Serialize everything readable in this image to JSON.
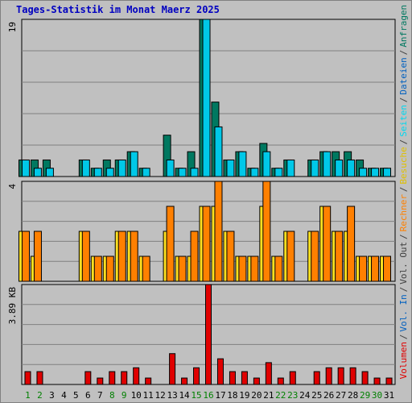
{
  "chart_data": {
    "type": "bar",
    "title": "Tages-Statistik im Monat Maerz 2025",
    "categories": [
      "1",
      "2",
      "3",
      "4",
      "5",
      "6",
      "7",
      "8",
      "9",
      "10",
      "11",
      "12",
      "13",
      "14",
      "15",
      "16",
      "17",
      "18",
      "19",
      "20",
      "21",
      "22",
      "23",
      "24",
      "25",
      "26",
      "27",
      "28",
      "29",
      "30",
      "31"
    ],
    "weekend_days": [
      "1",
      "2",
      "8",
      "9",
      "15",
      "16",
      "22",
      "23",
      "29",
      "30"
    ],
    "panels": [
      {
        "name": "hits",
        "max_label": "19",
        "ylim": [
          0,
          19
        ],
        "series": [
          {
            "name": "Anfragen",
            "color": "#007860",
            "values": [
              2,
              2,
              2,
              0,
              0,
              2,
              1,
              2,
              2,
              3,
              1,
              0,
              5,
              1,
              3,
              19,
              9,
              2,
              3,
              1,
              4,
              1,
              2,
              0,
              2,
              3,
              3,
              3,
              2,
              1,
              1
            ]
          },
          {
            "name": "Dateien",
            "color": "#00c8e8",
            "values": [
              2,
              1,
              1,
              0,
              0,
              2,
              1,
              1,
              2,
              3,
              1,
              0,
              2,
              1,
              1,
              19,
              6,
              2,
              3,
              1,
              3,
              1,
              2,
              0,
              2,
              3,
              2,
              2,
              1,
              1,
              1
            ]
          },
          {
            "name": "Seiten",
            "color": "#00e8ff",
            "values": []
          }
        ]
      },
      {
        "name": "visits",
        "max_label": "4",
        "ylim": [
          0,
          4
        ],
        "series": [
          {
            "name": "Besuche",
            "color": "#ffe020",
            "values": [
              2,
              1,
              0,
              0,
              0,
              2,
              1,
              1,
              2,
              2,
              1,
              0,
              2,
              1,
              1,
              3,
              3,
              2,
              1,
              1,
              3,
              1,
              2,
              0,
              2,
              3,
              2,
              2,
              1,
              1,
              1
            ]
          },
          {
            "name": "Rechner",
            "color": "#ff8000",
            "values": [
              2,
              2,
              0,
              0,
              0,
              2,
              1,
              1,
              2,
              2,
              1,
              0,
              3,
              1,
              2,
              3,
              4,
              2,
              1,
              1,
              4,
              1,
              2,
              0,
              2,
              3,
              2,
              3,
              1,
              1,
              1
            ]
          }
        ]
      },
      {
        "name": "volume",
        "max_label": "3.89 KB",
        "ylim": [
          0,
          3.89
        ],
        "series": [
          {
            "name": "Volumen",
            "color": "#e00000",
            "values": [
              0.5,
              0.5,
              0,
              0,
              0,
              0.5,
              0.25,
              0.5,
              0.5,
              0.65,
              0.25,
              0,
              1.2,
              0.25,
              0.65,
              3.89,
              1.0,
              0.5,
              0.5,
              0.25,
              0.85,
              0.25,
              0.5,
              0,
              0.5,
              0.65,
              0.65,
              0.65,
              0.5,
              0.25,
              0.25
            ]
          },
          {
            "name": "Vol. In",
            "color": "#0060c0",
            "values": []
          },
          {
            "name": "Vol. Out",
            "color": "#404040",
            "values": []
          }
        ]
      }
    ],
    "right_labels": {
      "top": [
        {
          "text": "Anfragen",
          "color": "#007860"
        },
        {
          "text": "/",
          "color": "#404040"
        },
        {
          "text": "Dateien",
          "color": "#0060c0"
        },
        {
          "text": "/",
          "color": "#404040"
        },
        {
          "text": "Seiten",
          "color": "#00d8f0"
        },
        {
          "text": "/",
          "color": "#404040"
        },
        {
          "text": "Besuche",
          "color": "#e0c000"
        },
        {
          "text": "/",
          "color": "#404040"
        },
        {
          "text": "Rechner",
          "color": "#ff8000"
        },
        {
          "text": "/",
          "color": "#404040"
        },
        {
          "text": "Vol. Out",
          "color": "#404040"
        },
        {
          "text": "/",
          "color": "#404040"
        },
        {
          "text": "Vol. In",
          "color": "#0060c0"
        },
        {
          "text": "/",
          "color": "#404040"
        },
        {
          "text": "Volumen",
          "color": "#e00000"
        }
      ]
    },
    "colors": {
      "title": "#0000c0",
      "weekday_label": "#000000",
      "weekend_label": "#008000",
      "plot_bg": "#c0c0c0",
      "grid": "#808080"
    }
  }
}
